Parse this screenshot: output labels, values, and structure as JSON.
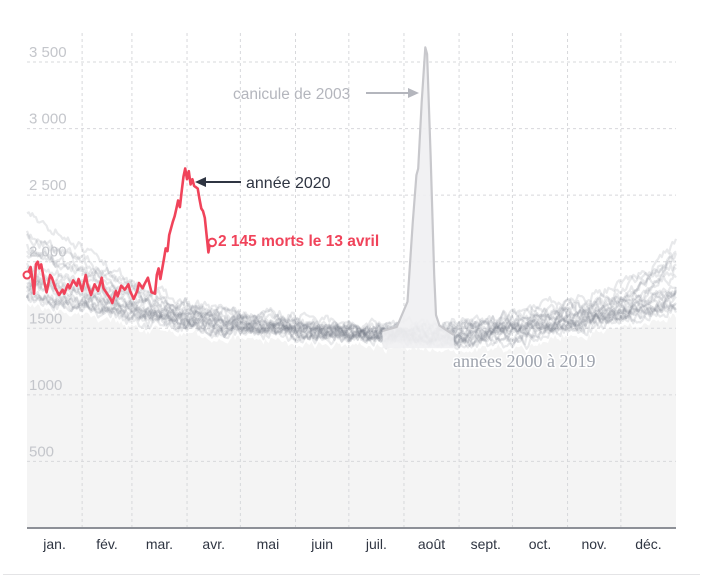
{
  "chart_data": {
    "type": "line",
    "title": "",
    "xlabel": "",
    "ylabel": "",
    "ylim": [
      0,
      3500
    ],
    "xlim_days": [
      0,
      365
    ],
    "grid": true,
    "y_ticks": [
      {
        "value": 500,
        "label": "500"
      },
      {
        "value": 1000,
        "label": "1000"
      },
      {
        "value": 1500,
        "label": "1500"
      },
      {
        "value": 2000,
        "label": "2 000"
      },
      {
        "value": 2500,
        "label": "2 500"
      },
      {
        "value": 3000,
        "label": "3 000"
      },
      {
        "value": 3500,
        "label": "3 500"
      }
    ],
    "months": [
      {
        "label": "jan.",
        "start_day": 0
      },
      {
        "label": "fév.",
        "start_day": 31
      },
      {
        "label": "mar.",
        "start_day": 59
      },
      {
        "label": "avr.",
        "start_day": 90
      },
      {
        "label": "mai",
        "start_day": 120
      },
      {
        "label": "juin",
        "start_day": 151
      },
      {
        "label": "juil.",
        "start_day": 181
      },
      {
        "label": "août",
        "start_day": 212
      },
      {
        "label": "sept.",
        "start_day": 243
      },
      {
        "label": "oct.",
        "start_day": 273
      },
      {
        "label": "nov.",
        "start_day": 304
      },
      {
        "label": "déc.",
        "start_day": 334
      }
    ],
    "series": [
      {
        "name": "années 2000 à 2019",
        "kind": "ensemble",
        "color": "#6f7681",
        "years": [
          2000,
          2001,
          2002,
          2004,
          2005,
          2006,
          2007,
          2008,
          2009,
          2010,
          2011,
          2012,
          2013,
          2014,
          2015,
          2016,
          2017,
          2018,
          2019
        ],
        "seasonal_baseline": {
          "days": [
            0,
            15,
            31,
            45,
            59,
            75,
            90,
            105,
            120,
            135,
            151,
            166,
            181,
            196,
            212,
            227,
            243,
            258,
            273,
            288,
            304,
            319,
            334,
            349,
            365
          ],
          "values": [
            1760,
            1740,
            1700,
            1660,
            1620,
            1590,
            1550,
            1530,
            1500,
            1490,
            1470,
            1460,
            1450,
            1440,
            1430,
            1420,
            1420,
            1440,
            1460,
            1500,
            1530,
            1560,
            1600,
            1640,
            1700
          ]
        },
        "year_offsets": [
          120,
          250,
          -60,
          40,
          300,
          10,
          -40,
          180,
          90,
          -80,
          20,
          140,
          60,
          -20,
          210,
          -10,
          160,
          30,
          70
        ],
        "winter_extra": [
          150,
          450,
          0,
          80,
          250,
          20,
          0,
          200,
          120,
          0,
          30,
          260,
          100,
          0,
          300,
          0,
          220,
          60,
          40
        ],
        "noise_amplitude": 70
      },
      {
        "name": "canicule de 2003",
        "kind": "heatwave",
        "color": "#c8c8cc",
        "fill": "#f0f0f2",
        "points": [
          {
            "day": 200,
            "value": 1480
          },
          {
            "day": 208,
            "value": 1510
          },
          {
            "day": 214,
            "value": 1700
          },
          {
            "day": 217,
            "value": 2300
          },
          {
            "day": 219,
            "value": 2650
          },
          {
            "day": 220,
            "value": 2700
          },
          {
            "day": 222,
            "value": 3200
          },
          {
            "day": 224,
            "value": 3610
          },
          {
            "day": 225,
            "value": 3560
          },
          {
            "day": 227,
            "value": 2800
          },
          {
            "day": 229,
            "value": 1900
          },
          {
            "day": 230,
            "value": 1600
          },
          {
            "day": 232,
            "value": 1520
          },
          {
            "day": 240,
            "value": 1450
          }
        ]
      },
      {
        "name": "année 2020",
        "kind": "highlight",
        "color": "#f0435a",
        "values_by_day": [
          {
            "day": 0,
            "value": 1900
          },
          {
            "day": 2,
            "value": 1960
          },
          {
            "day": 3,
            "value": 1870
          },
          {
            "day": 4,
            "value": 1760
          },
          {
            "day": 5,
            "value": 1980
          },
          {
            "day": 6,
            "value": 2000
          },
          {
            "day": 7,
            "value": 1950
          },
          {
            "day": 8,
            "value": 1980
          },
          {
            "day": 10,
            "value": 1830
          },
          {
            "day": 11,
            "value": 1770
          },
          {
            "day": 13,
            "value": 1900
          },
          {
            "day": 14,
            "value": 1880
          },
          {
            "day": 16,
            "value": 1800
          },
          {
            "day": 18,
            "value": 1750
          },
          {
            "day": 20,
            "value": 1790
          },
          {
            "day": 21,
            "value": 1760
          },
          {
            "day": 23,
            "value": 1830
          },
          {
            "day": 24,
            "value": 1800
          },
          {
            "day": 26,
            "value": 1860
          },
          {
            "day": 28,
            "value": 1820
          },
          {
            "day": 29,
            "value": 1870
          },
          {
            "day": 31,
            "value": 1780
          },
          {
            "day": 33,
            "value": 1900
          },
          {
            "day": 34,
            "value": 1830
          },
          {
            "day": 36,
            "value": 1750
          },
          {
            "day": 38,
            "value": 1830
          },
          {
            "day": 40,
            "value": 1780
          },
          {
            "day": 42,
            "value": 1880
          },
          {
            "day": 43,
            "value": 1800
          },
          {
            "day": 45,
            "value": 1760
          },
          {
            "day": 47,
            "value": 1720
          },
          {
            "day": 48,
            "value": 1690
          },
          {
            "day": 50,
            "value": 1780
          },
          {
            "day": 51,
            "value": 1740
          },
          {
            "day": 53,
            "value": 1820
          },
          {
            "day": 55,
            "value": 1790
          },
          {
            "day": 57,
            "value": 1830
          },
          {
            "day": 58,
            "value": 1780
          },
          {
            "day": 60,
            "value": 1720
          },
          {
            "day": 62,
            "value": 1780
          },
          {
            "day": 63,
            "value": 1840
          },
          {
            "day": 65,
            "value": 1800
          },
          {
            "day": 66,
            "value": 1830
          },
          {
            "day": 68,
            "value": 1880
          },
          {
            "day": 70,
            "value": 1770
          },
          {
            "day": 72,
            "value": 1760
          },
          {
            "day": 73,
            "value": 1900
          },
          {
            "day": 74,
            "value": 1950
          },
          {
            "day": 75,
            "value": 1870
          },
          {
            "day": 77,
            "value": 2020
          },
          {
            "day": 78,
            "value": 2100
          },
          {
            "day": 79,
            "value": 2080
          },
          {
            "day": 80,
            "value": 2200
          },
          {
            "day": 81,
            "value": 2250
          },
          {
            "day": 82,
            "value": 2300
          },
          {
            "day": 83,
            "value": 2340
          },
          {
            "day": 84,
            "value": 2400
          },
          {
            "day": 85,
            "value": 2460
          },
          {
            "day": 86,
            "value": 2410
          },
          {
            "day": 87,
            "value": 2530
          },
          {
            "day": 88,
            "value": 2640
          },
          {
            "day": 89,
            "value": 2700
          },
          {
            "day": 90,
            "value": 2620
          },
          {
            "day": 91,
            "value": 2680
          },
          {
            "day": 92,
            "value": 2580
          },
          {
            "day": 93,
            "value": 2620
          },
          {
            "day": 94,
            "value": 2570
          },
          {
            "day": 95,
            "value": 2560
          },
          {
            "day": 96,
            "value": 2550
          },
          {
            "day": 97,
            "value": 2470
          },
          {
            "day": 98,
            "value": 2400
          },
          {
            "day": 99,
            "value": 2380
          },
          {
            "day": 100,
            "value": 2330
          },
          {
            "day": 101,
            "value": 2200
          },
          {
            "day": 102,
            "value": 2070
          },
          {
            "day": 103,
            "value": 2145
          }
        ],
        "last_point": {
          "day": 103,
          "value": 2145
        }
      }
    ],
    "annotations": {
      "heatwave_label": "canicule de 2003",
      "year2020_label": "année 2020",
      "last_value_label": "2 145 morts le 13 avril",
      "ensemble_label": "années 2000 à 2019"
    },
    "legend": "none",
    "colors": {
      "background_fill": "#f4f4f4",
      "grid": "#d7d8db",
      "axis": "#8d9097",
      "highlight": "#f0435a",
      "annotation_dark": "#2f3542"
    }
  }
}
